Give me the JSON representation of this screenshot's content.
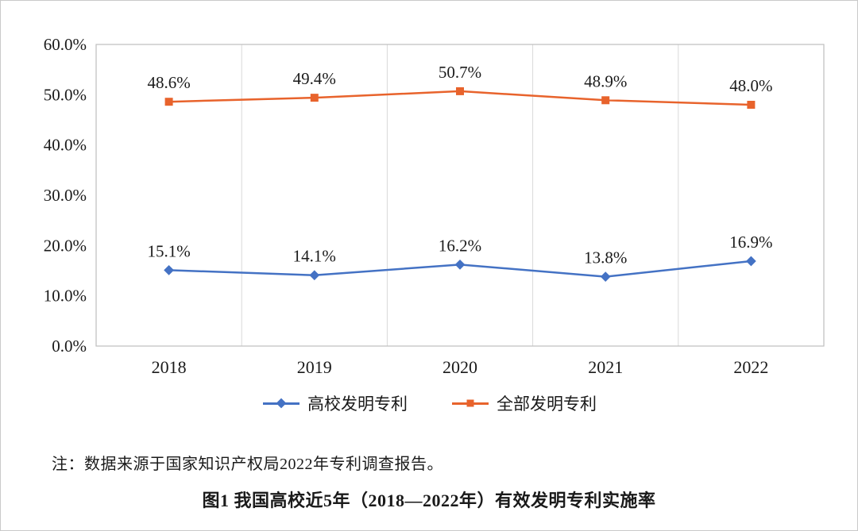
{
  "note": "注：数据来源于国家知识产权局2022年专利调查报告。",
  "caption": "图1 我国高校近5年（2018—2022年）有效发明专利实施率",
  "colors": {
    "university_series": "#4472C4",
    "all_series": "#E8632C",
    "grid": "#D9D9D9",
    "plot_border": "#BFBFBF",
    "text": "#1A1A1A"
  },
  "legend": {
    "items": [
      {
        "label": "高校发明专利",
        "marker": "diamond-icon"
      },
      {
        "label": "全部发明专利",
        "marker": "square-icon"
      }
    ]
  },
  "chart_data": {
    "type": "line",
    "title": "",
    "xlabel": "",
    "ylabel": "",
    "categories": [
      "2018",
      "2019",
      "2020",
      "2021",
      "2022"
    ],
    "series": [
      {
        "name": "高校发明专利",
        "values": [
          15.1,
          14.1,
          16.2,
          13.8,
          16.9
        ],
        "color": "#4472C4",
        "marker": "diamond"
      },
      {
        "name": "全部发明专利",
        "values": [
          48.6,
          49.4,
          50.7,
          48.9,
          48.0
        ],
        "color": "#E8632C",
        "marker": "square"
      }
    ],
    "data_labels": [
      [
        "15.1%",
        "14.1%",
        "16.2%",
        "13.8%",
        "16.9%"
      ],
      [
        "48.6%",
        "49.4%",
        "50.7%",
        "48.9%",
        "48.0%"
      ]
    ],
    "ylim": [
      0,
      60
    ],
    "ytick_step": 10,
    "ytick_labels": [
      "0.0%",
      "10.0%",
      "20.0%",
      "30.0%",
      "40.0%",
      "50.0%",
      "60.0%"
    ],
    "grid": "vertical-only",
    "legend_position": "bottom"
  }
}
